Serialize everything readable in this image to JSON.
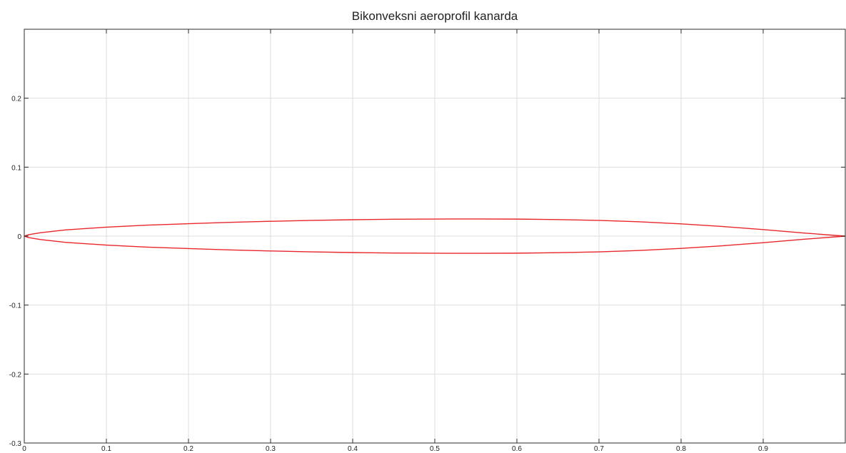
{
  "chart_data": {
    "type": "line",
    "title": "Bikonveksni aeroprofil kanarda",
    "xlabel": "",
    "ylabel": "",
    "xlim": [
      0,
      1
    ],
    "ylim": [
      -0.3,
      0.3
    ],
    "x_ticks": [
      0,
      0.1,
      0.2,
      0.3,
      0.4,
      0.5,
      0.6,
      0.7,
      0.8,
      0.9
    ],
    "x_tick_labels": [
      "0",
      "0.1",
      "0.2",
      "0.3",
      "0.4",
      "0.5",
      "0.6",
      "0.7",
      "0.8",
      "0.9"
    ],
    "y_ticks": [
      -0.3,
      -0.2,
      -0.1,
      0,
      0.1,
      0.2
    ],
    "y_tick_labels": [
      "-0.3",
      "-0.2",
      "-0.1",
      "0",
      "0.1",
      "0.2"
    ],
    "grid": true,
    "line_color": "#e8262b",
    "series": [
      {
        "x": [
          0,
          0.005,
          0.01,
          0.02,
          0.05,
          0.1,
          0.15,
          0.2,
          0.25,
          0.3,
          0.35,
          0.4,
          0.45,
          0.5,
          0.55,
          0.6,
          0.65,
          0.7,
          0.75,
          0.8,
          0.85,
          0.9,
          0.95,
          1.0
        ],
        "y": [
          0,
          0.002,
          0.003,
          0.005,
          0.009,
          0.013,
          0.016,
          0.018,
          0.02,
          0.0215,
          0.0228,
          0.0238,
          0.0245,
          0.0248,
          0.0249,
          0.0247,
          0.024,
          0.0228,
          0.0208,
          0.0178,
          0.014,
          0.0095,
          0.0045,
          0
        ]
      },
      {
        "x": [
          0,
          0.005,
          0.01,
          0.02,
          0.05,
          0.1,
          0.15,
          0.2,
          0.25,
          0.3,
          0.35,
          0.4,
          0.45,
          0.5,
          0.55,
          0.6,
          0.65,
          0.7,
          0.75,
          0.8,
          0.85,
          0.9,
          0.95,
          1.0
        ],
        "y": [
          0,
          -0.002,
          -0.003,
          -0.005,
          -0.009,
          -0.013,
          -0.016,
          -0.018,
          -0.02,
          -0.0215,
          -0.0228,
          -0.0238,
          -0.0245,
          -0.0248,
          -0.0249,
          -0.0247,
          -0.024,
          -0.0228,
          -0.0208,
          -0.0178,
          -0.014,
          -0.0095,
          -0.0045,
          0
        ]
      }
    ]
  }
}
